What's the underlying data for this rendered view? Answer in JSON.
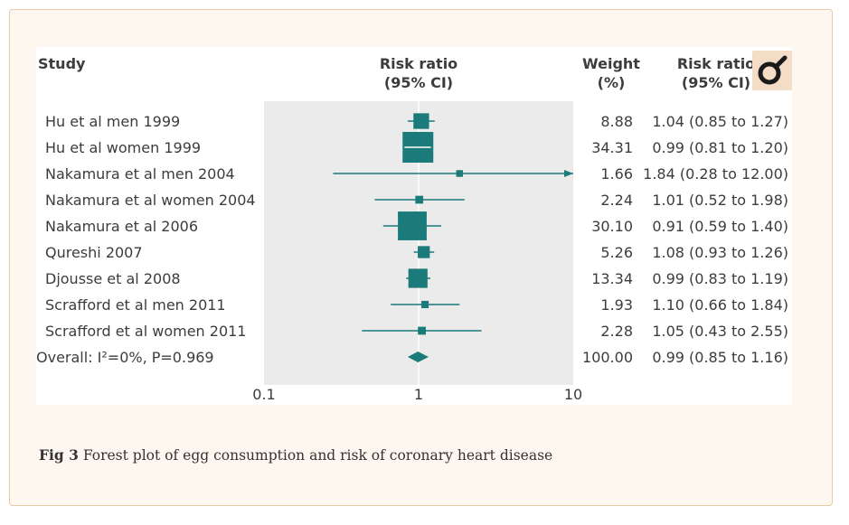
{
  "chart_data": {
    "type": "forest",
    "title": "",
    "header": {
      "study": "Study",
      "rr_plot": [
        "Risk ratio",
        "(95% CI)"
      ],
      "weight": [
        "Weight",
        "(%)"
      ],
      "rr_text": [
        "Risk ratio",
        "(95% CI)"
      ]
    },
    "x_axis": {
      "scale": "log",
      "range": [
        0.1,
        10
      ],
      "ticks": [
        "0.1",
        "1",
        "10"
      ],
      "tick_values": [
        0.1,
        1,
        10
      ]
    },
    "studies": [
      {
        "name": "Hu et al men 1999",
        "rr": 1.04,
        "lo": 0.85,
        "hi": 1.27,
        "weight": "8.88",
        "ci_text": "1.04 (0.85 to 1.27)"
      },
      {
        "name": "Hu et al women 1999",
        "rr": 0.99,
        "lo": 0.81,
        "hi": 1.2,
        "weight": "34.31",
        "ci_text": "0.99 (0.81 to 1.20)"
      },
      {
        "name": "Nakamura et al men 2004",
        "rr": 1.84,
        "lo": 0.28,
        "hi": 12.0,
        "weight": "1.66",
        "ci_text": "1.84 (0.28 to 12.00)"
      },
      {
        "name": "Nakamura et al women 2004",
        "rr": 1.01,
        "lo": 0.52,
        "hi": 1.98,
        "weight": "2.24",
        "ci_text": "1.01 (0.52 to 1.98)"
      },
      {
        "name": "Nakamura et al 2006",
        "rr": 0.91,
        "lo": 0.59,
        "hi": 1.4,
        "weight": "30.10",
        "ci_text": "0.91 (0.59 to 1.40)"
      },
      {
        "name": "Qureshi 2007",
        "rr": 1.08,
        "lo": 0.93,
        "hi": 1.26,
        "weight": "5.26",
        "ci_text": "1.08 (0.93 to 1.26)"
      },
      {
        "name": "Djousse et al 2008",
        "rr": 0.99,
        "lo": 0.83,
        "hi": 1.19,
        "weight": "13.34",
        "ci_text": "0.99 (0.83 to 1.19)"
      },
      {
        "name": "Scrafford et al men 2011",
        "rr": 1.1,
        "lo": 0.66,
        "hi": 1.84,
        "weight": "1.93",
        "ci_text": "1.10 (0.66 to 1.84)"
      },
      {
        "name": "Scrafford et al women 2011",
        "rr": 1.05,
        "lo": 0.43,
        "hi": 2.55,
        "weight": "2.28",
        "ci_text": "1.05 (0.43 to 2.55)"
      }
    ],
    "overall": {
      "label": "Overall: I²=0%, P=0.969",
      "rr": 0.99,
      "lo": 0.85,
      "hi": 1.16,
      "weight": "100.00",
      "ci_text": "0.99 (0.85 to 1.16)"
    },
    "colors": {
      "marker": "#1b7a7a",
      "plot_bg": "#ebebeb",
      "text": "#3c3c3c"
    }
  },
  "caption": {
    "label": "Fig 3",
    "text": "Forest plot of egg consumption and risk of coronary heart disease"
  },
  "logo_icon": "bmj-logo-icon"
}
